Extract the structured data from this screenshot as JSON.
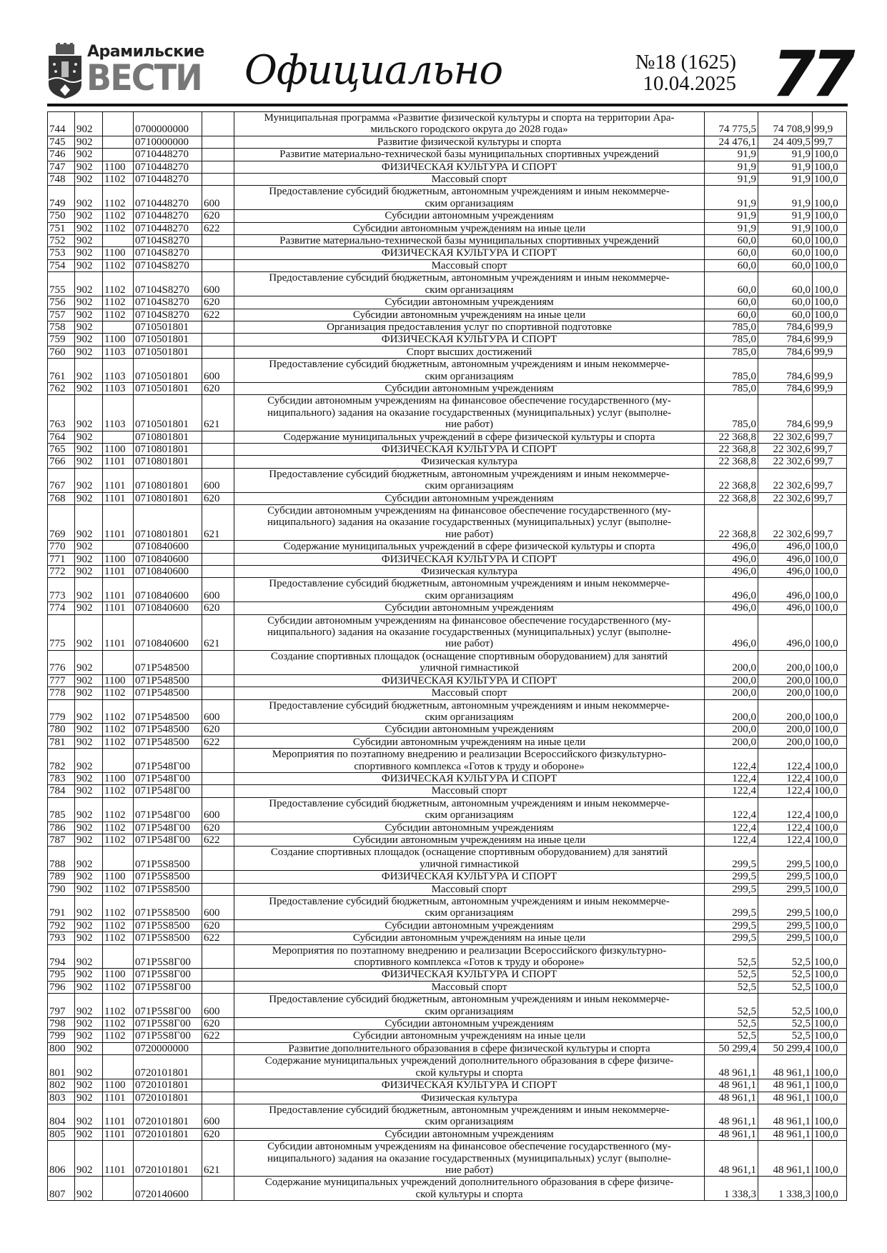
{
  "header": {
    "logo_line1": "Арамильские",
    "logo_line2": "ВЕСТИ",
    "section": "Официально",
    "issue": "№18 (1625)",
    "date": "10.04.2025",
    "page_number": "77"
  },
  "table": {
    "rows": [
      [
        "744",
        "902",
        "",
        "0700000000",
        "",
        "Муниципальная программа «Развитие физической культуры и спорта на территории Ара-\nмильского городского округа до 2028 года»",
        "74 775,5",
        "74 708,9",
        "99,9"
      ],
      [
        "745",
        "902",
        "",
        "0710000000",
        "",
        "Развитие физической культуры и спорта",
        "24 476,1",
        "24 409,5",
        "99,7"
      ],
      [
        "746",
        "902",
        "",
        "0710448270",
        "",
        "Развитие материально-технической базы муниципальных спортивных учреждений",
        "91,9",
        "91,9",
        "100,0"
      ],
      [
        "747",
        "902",
        "1100",
        "0710448270",
        "",
        "ФИЗИЧЕСКАЯ КУЛЬТУРА И СПОРТ",
        "91,9",
        "91,9",
        "100,0"
      ],
      [
        "748",
        "902",
        "1102",
        "0710448270",
        "",
        "Массовый спорт",
        "91,9",
        "91,9",
        "100,0"
      ],
      [
        "749",
        "902",
        "1102",
        "0710448270",
        "600",
        "Предоставление субсидий бюджетным, автономным учреждениям и иным некоммерче-\nским организациям",
        "91,9",
        "91,9",
        "100,0"
      ],
      [
        "750",
        "902",
        "1102",
        "0710448270",
        "620",
        "Субсидии автономным учреждениям",
        "91,9",
        "91,9",
        "100,0"
      ],
      [
        "751",
        "902",
        "1102",
        "0710448270",
        "622",
        "Субсидии автономным учреждениям на иные цели",
        "91,9",
        "91,9",
        "100,0"
      ],
      [
        "752",
        "902",
        "",
        "07104S8270",
        "",
        "Развитие материально-технической базы муниципальных спортивных учреждений",
        "60,0",
        "60,0",
        "100,0"
      ],
      [
        "753",
        "902",
        "1100",
        "07104S8270",
        "",
        "ФИЗИЧЕСКАЯ КУЛЬТУРА И СПОРТ",
        "60,0",
        "60,0",
        "100,0"
      ],
      [
        "754",
        "902",
        "1102",
        "07104S8270",
        "",
        "Массовый спорт",
        "60,0",
        "60,0",
        "100,0"
      ],
      [
        "755",
        "902",
        "1102",
        "07104S8270",
        "600",
        "Предоставление субсидий бюджетным, автономным учреждениям и иным некоммерче-\nским организациям",
        "60,0",
        "60,0",
        "100,0"
      ],
      [
        "756",
        "902",
        "1102",
        "07104S8270",
        "620",
        "Субсидии автономным учреждениям",
        "60,0",
        "60,0",
        "100,0"
      ],
      [
        "757",
        "902",
        "1102",
        "07104S8270",
        "622",
        "Субсидии автономным учреждениям на иные цели",
        "60,0",
        "60,0",
        "100,0"
      ],
      [
        "758",
        "902",
        "",
        "0710501801",
        "",
        "Организация предоставления услуг по спортивной подготовке",
        "785,0",
        "784,6",
        "99,9"
      ],
      [
        "759",
        "902",
        "1100",
        "0710501801",
        "",
        "ФИЗИЧЕСКАЯ КУЛЬТУРА И СПОРТ",
        "785,0",
        "784,6",
        "99,9"
      ],
      [
        "760",
        "902",
        "1103",
        "0710501801",
        "",
        "Спорт высших достижений",
        "785,0",
        "784,6",
        "99,9"
      ],
      [
        "761",
        "902",
        "1103",
        "0710501801",
        "600",
        "Предоставление субсидий бюджетным, автономным учреждениям и иным некоммерче-\nским организациям",
        "785,0",
        "784,6",
        "99,9"
      ],
      [
        "762",
        "902",
        "1103",
        "0710501801",
        "620",
        "Субсидии автономным учреждениям",
        "785,0",
        "784,6",
        "99,9"
      ],
      [
        "763",
        "902",
        "1103",
        "0710501801",
        "621",
        "Субсидии автономным учреждениям на финансовое обеспечение государственного (му-\nниципального) задания на оказание государственных (муниципальных) услуг (выполне-\nние работ)",
        "785,0",
        "784,6",
        "99,9"
      ],
      [
        "764",
        "902",
        "",
        "0710801801",
        "",
        "Содержание муниципальных учреждений в сфере физической культуры и спорта",
        "22 368,8",
        "22 302,6",
        "99,7"
      ],
      [
        "765",
        "902",
        "1100",
        "0710801801",
        "",
        "ФИЗИЧЕСКАЯ КУЛЬТУРА И СПОРТ",
        "22 368,8",
        "22 302,6",
        "99,7"
      ],
      [
        "766",
        "902",
        "1101",
        "0710801801",
        "",
        "Физическая культура",
        "22 368,8",
        "22 302,6",
        "99,7"
      ],
      [
        "767",
        "902",
        "1101",
        "0710801801",
        "600",
        "Предоставление субсидий бюджетным, автономным учреждениям и иным некоммерче-\nским организациям",
        "22 368,8",
        "22 302,6",
        "99,7"
      ],
      [
        "768",
        "902",
        "1101",
        "0710801801",
        "620",
        "Субсидии автономным учреждениям",
        "22 368,8",
        "22 302,6",
        "99,7"
      ],
      [
        "769",
        "902",
        "1101",
        "0710801801",
        "621",
        "Субсидии автономным учреждениям на финансовое обеспечение государственного (му-\nниципального) задания на оказание государственных (муниципальных) услуг (выполне-\nние работ)",
        "22 368,8",
        "22 302,6",
        "99,7"
      ],
      [
        "770",
        "902",
        "",
        "0710840600",
        "",
        "Содержание муниципальных учреждений в сфере физической культуры и спорта",
        "496,0",
        "496,0",
        "100,0"
      ],
      [
        "771",
        "902",
        "1100",
        "0710840600",
        "",
        "ФИЗИЧЕСКАЯ КУЛЬТУРА И СПОРТ",
        "496,0",
        "496,0",
        "100,0"
      ],
      [
        "772",
        "902",
        "1101",
        "0710840600",
        "",
        "Физическая культура",
        "496,0",
        "496,0",
        "100,0"
      ],
      [
        "773",
        "902",
        "1101",
        "0710840600",
        "600",
        "Предоставление субсидий бюджетным, автономным учреждениям и иным некоммерче-\nским организациям",
        "496,0",
        "496,0",
        "100,0"
      ],
      [
        "774",
        "902",
        "1101",
        "0710840600",
        "620",
        "Субсидии автономным учреждениям",
        "496,0",
        "496,0",
        "100,0"
      ],
      [
        "775",
        "902",
        "1101",
        "0710840600",
        "621",
        "Субсидии автономным учреждениям на финансовое обеспечение государственного (му-\nниципального) задания на оказание государственных (муниципальных) услуг (выполне-\nние работ)",
        "496,0",
        "496,0",
        "100,0"
      ],
      [
        "776",
        "902",
        "",
        "071P548500",
        "",
        "Создание спортивных площадок (оснащение спортивным оборудованием) для занятий\nуличной гимнастикой",
        "200,0",
        "200,0",
        "100,0"
      ],
      [
        "777",
        "902",
        "1100",
        "071P548500",
        "",
        "ФИЗИЧЕСКАЯ КУЛЬТУРА И СПОРТ",
        "200,0",
        "200,0",
        "100,0"
      ],
      [
        "778",
        "902",
        "1102",
        "071P548500",
        "",
        "Массовый спорт",
        "200,0",
        "200,0",
        "100,0"
      ],
      [
        "779",
        "902",
        "1102",
        "071P548500",
        "600",
        "Предоставление субсидий бюджетным, автономным учреждениям и иным некоммерче-\nским организациям",
        "200,0",
        "200,0",
        "100,0"
      ],
      [
        "780",
        "902",
        "1102",
        "071P548500",
        "620",
        "Субсидии автономным учреждениям",
        "200,0",
        "200,0",
        "100,0"
      ],
      [
        "781",
        "902",
        "1102",
        "071P548500",
        "622",
        "Субсидии автономным учреждениям на иные цели",
        "200,0",
        "200,0",
        "100,0"
      ],
      [
        "782",
        "902",
        "",
        "071P548Г00",
        "",
        "Мероприятия по поэтапному внедрению и реализации Всероссийского физкультурно-\nспортивного комплекса «Готов к труду и обороне»",
        "122,4",
        "122,4",
        "100,0"
      ],
      [
        "783",
        "902",
        "1100",
        "071P548Г00",
        "",
        "ФИЗИЧЕСКАЯ КУЛЬТУРА И СПОРТ",
        "122,4",
        "122,4",
        "100,0"
      ],
      [
        "784",
        "902",
        "1102",
        "071P548Г00",
        "",
        "Массовый спорт",
        "122,4",
        "122,4",
        "100,0"
      ],
      [
        "785",
        "902",
        "1102",
        "071P548Г00",
        "600",
        "Предоставление субсидий бюджетным, автономным учреждениям и иным некоммерче-\nским организациям",
        "122,4",
        "122,4",
        "100,0"
      ],
      [
        "786",
        "902",
        "1102",
        "071P548Г00",
        "620",
        "Субсидии автономным учреждениям",
        "122,4",
        "122,4",
        "100,0"
      ],
      [
        "787",
        "902",
        "1102",
        "071P548Г00",
        "622",
        "Субсидии автономным учреждениям на иные цели",
        "122,4",
        "122,4",
        "100,0"
      ],
      [
        "788",
        "902",
        "",
        "071P5S8500",
        "",
        "Создание спортивных площадок (оснащение спортивным оборудованием) для занятий\nуличной гимнастикой",
        "299,5",
        "299,5",
        "100,0"
      ],
      [
        "789",
        "902",
        "1100",
        "071P5S8500",
        "",
        "ФИЗИЧЕСКАЯ КУЛЬТУРА И СПОРТ",
        "299,5",
        "299,5",
        "100,0"
      ],
      [
        "790",
        "902",
        "1102",
        "071P5S8500",
        "",
        "Массовый спорт",
        "299,5",
        "299,5",
        "100,0"
      ],
      [
        "791",
        "902",
        "1102",
        "071P5S8500",
        "600",
        "Предоставление субсидий бюджетным, автономным учреждениям и иным некоммерче-\nским организациям",
        "299,5",
        "299,5",
        "100,0"
      ],
      [
        "792",
        "902",
        "1102",
        "071P5S8500",
        "620",
        "Субсидии автономным учреждениям",
        "299,5",
        "299,5",
        "100,0"
      ],
      [
        "793",
        "902",
        "1102",
        "071P5S8500",
        "622",
        "Субсидии автономным учреждениям на иные цели",
        "299,5",
        "299,5",
        "100,0"
      ],
      [
        "794",
        "902",
        "",
        "071P5S8Г00",
        "",
        "Мероприятия по поэтапному внедрению и реализации Всероссийского физкультурно-\nспортивного комплекса «Готов к труду и обороне»",
        "52,5",
        "52,5",
        "100,0"
      ],
      [
        "795",
        "902",
        "1100",
        "071P5S8Г00",
        "",
        "ФИЗИЧЕСКАЯ КУЛЬТУРА И СПОРТ",
        "52,5",
        "52,5",
        "100,0"
      ],
      [
        "796",
        "902",
        "1102",
        "071P5S8Г00",
        "",
        "Массовый спорт",
        "52,5",
        "52,5",
        "100,0"
      ],
      [
        "797",
        "902",
        "1102",
        "071P5S8Г00",
        "600",
        "Предоставление субсидий бюджетным, автономным учреждениям и иным некоммерче-\nским организациям",
        "52,5",
        "52,5",
        "100,0"
      ],
      [
        "798",
        "902",
        "1102",
        "071P5S8Г00",
        "620",
        "Субсидии автономным учреждениям",
        "52,5",
        "52,5",
        "100,0"
      ],
      [
        "799",
        "902",
        "1102",
        "071P5S8Г00",
        "622",
        "Субсидии автономным учреждениям на иные цели",
        "52,5",
        "52,5",
        "100,0"
      ],
      [
        "800",
        "902",
        "",
        "0720000000",
        "",
        "Развитие дополнительного образования в сфере физической культуры и спорта",
        "50 299,4",
        "50 299,4",
        "100,0"
      ],
      [
        "801",
        "902",
        "",
        "0720101801",
        "",
        "Содержание муниципальных учреждений дополнительного образования в сфере физиче-\nской культуры и спорта",
        "48 961,1",
        "48 961,1",
        "100,0"
      ],
      [
        "802",
        "902",
        "1100",
        "0720101801",
        "",
        "ФИЗИЧЕСКАЯ КУЛЬТУРА И СПОРТ",
        "48 961,1",
        "48 961,1",
        "100,0"
      ],
      [
        "803",
        "902",
        "1101",
        "0720101801",
        "",
        "Физическая культура",
        "48 961,1",
        "48 961,1",
        "100,0"
      ],
      [
        "804",
        "902",
        "1101",
        "0720101801",
        "600",
        "Предоставление субсидий бюджетным, автономным учреждениям и иным некоммерче-\nским организациям",
        "48 961,1",
        "48 961,1",
        "100,0"
      ],
      [
        "805",
        "902",
        "1101",
        "0720101801",
        "620",
        "Субсидии автономным учреждениям",
        "48 961,1",
        "48 961,1",
        "100,0"
      ],
      [
        "806",
        "902",
        "1101",
        "0720101801",
        "621",
        "Субсидии автономным учреждениям на финансовое обеспечение государственного (му-\nниципального) задания на оказание государственных (муниципальных) услуг (выполне-\nние работ)",
        "48 961,1",
        "48 961,1",
        "100,0"
      ],
      [
        "807",
        "902",
        "",
        "0720140600",
        "",
        "Содержание муниципальных учреждений дополнительного образования в сфере физиче-\nской культуры и спорта",
        "1 338,3",
        "1 338,3",
        "100,0"
      ]
    ]
  }
}
